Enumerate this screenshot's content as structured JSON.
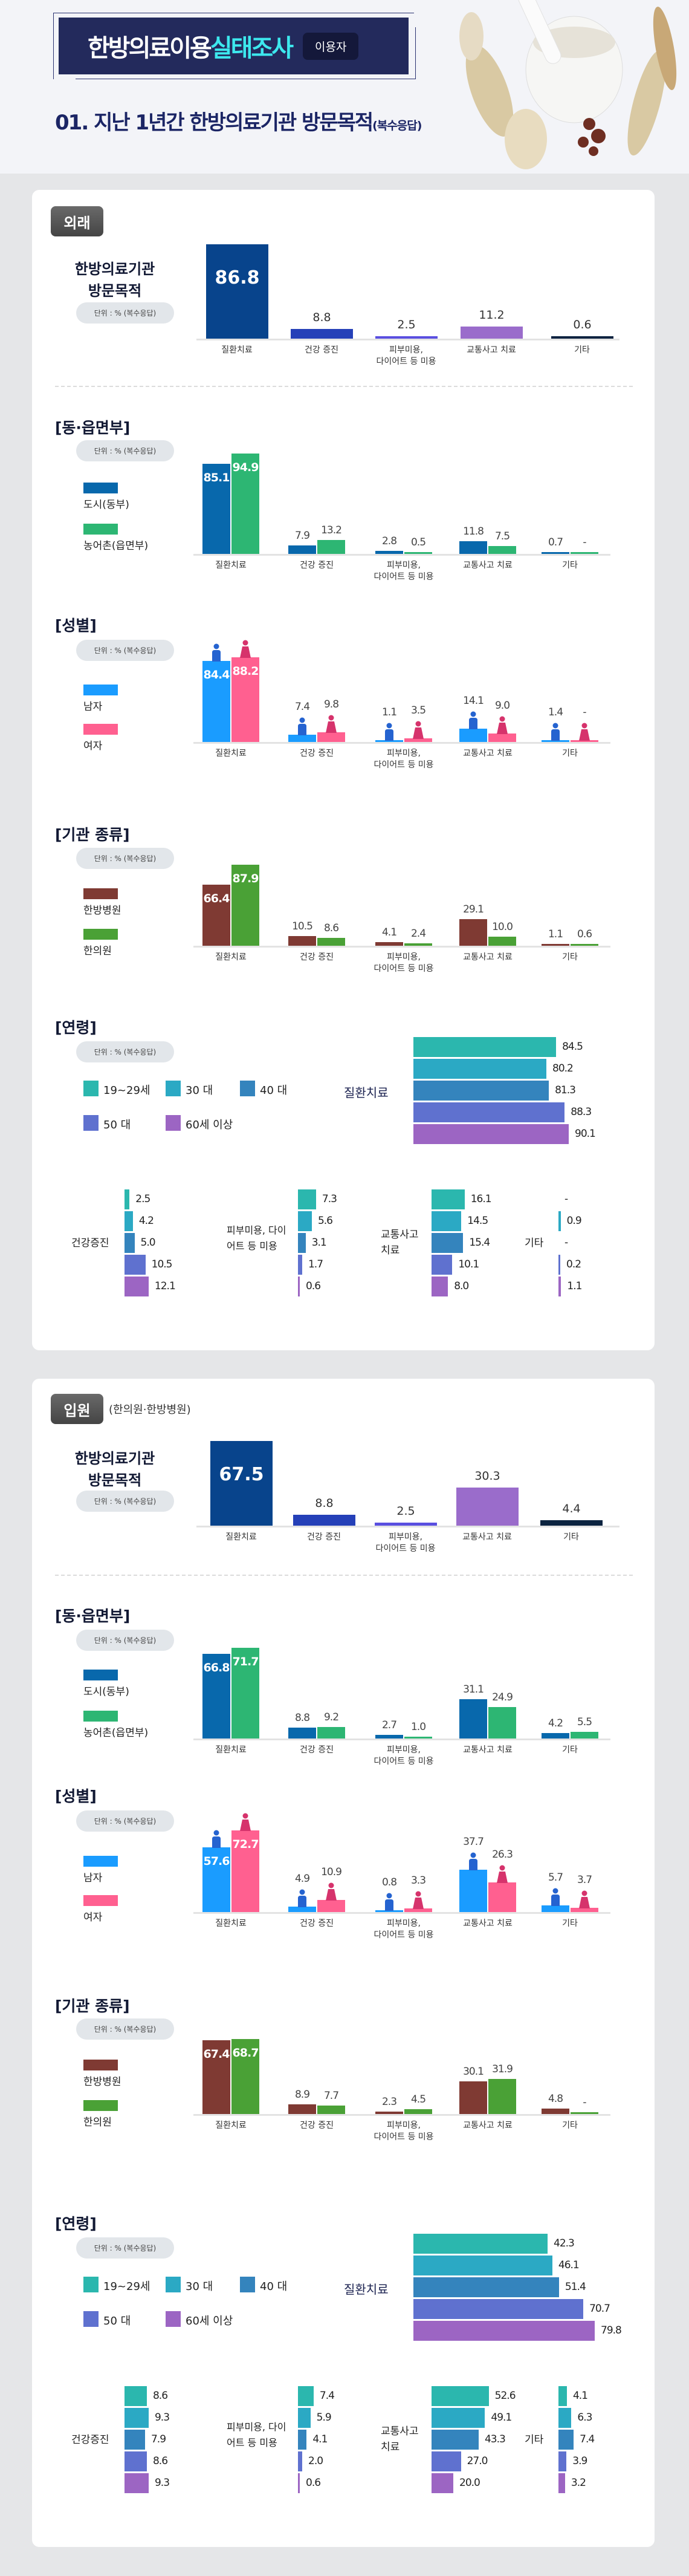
{
  "header": {
    "title_main": "한방의료이용",
    "title_accent": "실태조사",
    "badge": "이용자",
    "heading": "01. 지난 1년간 한방의료기관 방문목적",
    "heading_sub": "(복수응답)"
  },
  "colors": {
    "main": [
      "#08448c",
      "#2540b8",
      "#5a4fe0",
      "#9a6ccb",
      "#0b2340"
    ],
    "region": [
      "#0868ac",
      "#2db673"
    ],
    "gender": [
      "#1a9cff",
      "#ff6090"
    ],
    "gender_icon": [
      "#2563d0",
      "#d6336c"
    ],
    "institution": [
      "#7f3a33",
      "#4aa136"
    ],
    "age": [
      "#2bb7ae",
      "#2ba9c4",
      "#3484bd",
      "#5f71cf",
      "#9c65c3"
    ]
  },
  "chart_data": {
    "type": "bar",
    "unit_label": "단위 : % (복수응답)",
    "categories": [
      [
        "질환치료"
      ],
      [
        "건강 증진"
      ],
      [
        "피부미용,",
        "다이어트 등 미용"
      ],
      [
        "교통사고 치료"
      ],
      [
        "기타"
      ]
    ],
    "sections": [
      {
        "badge": "외래",
        "subtitle": "",
        "main": {
          "title_lines": [
            "한방의료기관",
            "방문목적"
          ],
          "values": [
            "86.8",
            "8.8",
            "2.5",
            "11.2",
            "0.6"
          ]
        },
        "region": {
          "title": "[동·읍면부]",
          "legend": [
            "도시(동부)",
            "농어촌(읍면부)"
          ],
          "series": [
            [
              "85.1",
              "7.9",
              "2.8",
              "11.8",
              "0.7"
            ],
            [
              "94.9",
              "13.2",
              "0.5",
              "7.5",
              "-"
            ]
          ]
        },
        "gender": {
          "title": "[성별]",
          "legend": [
            "남자",
            "여자"
          ],
          "series": [
            [
              "84.4",
              "7.4",
              "1.1",
              "14.1",
              "1.4"
            ],
            [
              "88.2",
              "9.8",
              "3.5",
              "9.0",
              "-"
            ]
          ]
        },
        "institution": {
          "title": "[기관 종류]",
          "legend": [
            "한방병원",
            "한의원"
          ],
          "series": [
            [
              "66.4",
              "10.5",
              "4.1",
              "29.1",
              "1.1"
            ],
            [
              "87.9",
              "8.6",
              "2.4",
              "10.0",
              "0.6"
            ]
          ]
        },
        "age": {
          "title": "[연령]",
          "legend": [
            "19~29세",
            "30 대",
            "40 대",
            "50 대",
            "60세 이상"
          ],
          "main_label": "질환치료",
          "main_values": [
            "84.5",
            "80.2",
            "81.3",
            "88.3",
            "90.1"
          ],
          "groups": [
            {
              "label": "건강증진",
              "values": [
                "2.5",
                "4.2",
                "5.0",
                "10.5",
                "12.1"
              ]
            },
            {
              "label": "피부미용, 다이어트 등 미용",
              "values": [
                "7.3",
                "5.6",
                "3.1",
                "1.7",
                "0.6"
              ]
            },
            {
              "label": "교통사고 치료",
              "values": [
                "16.1",
                "14.5",
                "15.4",
                "10.1",
                "8.0"
              ]
            },
            {
              "label": "기타",
              "values": [
                "-",
                "0.9",
                "-",
                "0.2",
                "1.1"
              ]
            }
          ]
        }
      },
      {
        "badge": "입원",
        "subtitle": "(한의원·한방병원)",
        "main": {
          "title_lines": [
            "한방의료기관",
            "방문목적"
          ],
          "values": [
            "67.5",
            "8.8",
            "2.5",
            "30.3",
            "4.4"
          ]
        },
        "region": {
          "title": "[동·읍면부]",
          "legend": [
            "도시(동부)",
            "농어촌(읍면부)"
          ],
          "series": [
            [
              "66.8",
              "8.8",
              "2.7",
              "31.1",
              "4.2"
            ],
            [
              "71.7",
              "9.2",
              "1.0",
              "24.9",
              "5.5"
            ]
          ]
        },
        "gender": {
          "title": "[성별]",
          "legend": [
            "남자",
            "여자"
          ],
          "series": [
            [
              "57.6",
              "4.9",
              "0.8",
              "37.7",
              "5.7"
            ],
            [
              "72.7",
              "10.9",
              "3.3",
              "26.3",
              "3.7"
            ]
          ]
        },
        "institution": {
          "title": "[기관 종류]",
          "legend": [
            "한방병원",
            "한의원"
          ],
          "series": [
            [
              "67.4",
              "8.9",
              "2.3",
              "30.1",
              "4.8"
            ],
            [
              "68.7",
              "7.7",
              "4.5",
              "31.9",
              "-"
            ]
          ]
        },
        "age": {
          "title": "[연령]",
          "legend": [
            "19~29세",
            "30 대",
            "40 대",
            "50 대",
            "60세 이상"
          ],
          "main_label": "질환치료",
          "main_values": [
            "42.3",
            "46.1",
            "51.4",
            "70.7",
            "79.8"
          ],
          "groups": [
            {
              "label": "건강증진",
              "values": [
                "8.6",
                "9.3",
                "7.9",
                "8.6",
                "9.3"
              ]
            },
            {
              "label": "피부미용, 다이어트 등 미용",
              "values": [
                "7.4",
                "5.9",
                "4.1",
                "2.0",
                "0.6"
              ]
            },
            {
              "label": "교통사고 치료",
              "values": [
                "52.6",
                "49.1",
                "43.3",
                "27.0",
                "20.0"
              ]
            },
            {
              "label": "기타",
              "values": [
                "4.1",
                "6.3",
                "7.4",
                "3.9",
                "3.2"
              ]
            }
          ]
        }
      }
    ]
  }
}
